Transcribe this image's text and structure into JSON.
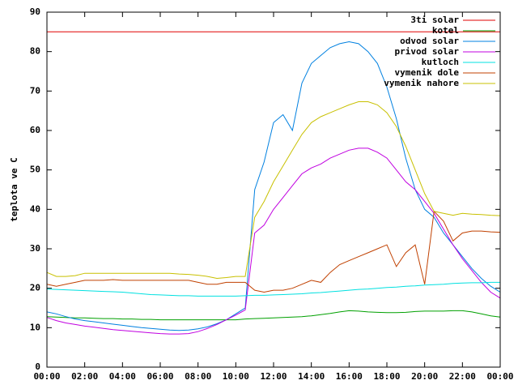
{
  "chart_data": {
    "type": "line",
    "y_label": "teplota ve C",
    "x": [
      0,
      0.5,
      1,
      1.5,
      2,
      2.5,
      3,
      3.5,
      4,
      4.5,
      5,
      5.5,
      6,
      6.5,
      7,
      7.5,
      8,
      8.5,
      9,
      9.5,
      10,
      10.5,
      11,
      11.5,
      12,
      12.5,
      13,
      13.5,
      14,
      14.5,
      15,
      15.5,
      16,
      16.5,
      17,
      17.5,
      18,
      18.5,
      19,
      19.5,
      20,
      20.5,
      21,
      21.5,
      22,
      22.5,
      23,
      23.5,
      24
    ],
    "xlim": [
      0,
      24
    ],
    "xticks": [
      {
        "value": 0,
        "label": "00:00"
      },
      {
        "value": 2,
        "label": "02:00"
      },
      {
        "value": 4,
        "label": "04:00"
      },
      {
        "value": 6,
        "label": "06:00"
      },
      {
        "value": 8,
        "label": "08:00"
      },
      {
        "value": 10,
        "label": "10:00"
      },
      {
        "value": 12,
        "label": "12:00"
      },
      {
        "value": 14,
        "label": "14:00"
      },
      {
        "value": 16,
        "label": "16:00"
      },
      {
        "value": 18,
        "label": "18:00"
      },
      {
        "value": 20,
        "label": "20:00"
      },
      {
        "value": 22,
        "label": "22:00"
      },
      {
        "value": 24,
        "label": "00:00"
      }
    ],
    "ylim": [
      0,
      90
    ],
    "yticks": [
      0,
      10,
      20,
      30,
      40,
      50,
      60,
      70,
      80,
      90
    ],
    "legend": "top-right",
    "series": [
      {
        "name": "3ti solar",
        "color": "#e00000",
        "values": [
          85,
          85,
          85,
          85,
          85,
          85,
          85,
          85,
          85,
          85,
          85,
          85,
          85,
          85,
          85,
          85,
          85,
          85,
          85,
          85,
          85,
          85,
          85,
          85,
          85,
          85,
          85,
          85,
          85,
          85,
          85,
          85,
          85,
          85,
          85,
          85,
          85,
          85,
          85,
          85,
          85,
          85,
          85,
          85,
          85,
          85,
          85,
          85,
          85
        ]
      },
      {
        "name": "kotel",
        "color": "#00a000",
        "values": [
          12.8,
          12.7,
          12.6,
          12.5,
          12.5,
          12.4,
          12.3,
          12.3,
          12.2,
          12.2,
          12.1,
          12.1,
          12,
          12,
          12,
          12,
          12,
          12,
          12,
          12,
          12,
          12.2,
          12.3,
          12.4,
          12.5,
          12.6,
          12.7,
          12.8,
          13,
          13.3,
          13.6,
          14,
          14.3,
          14.2,
          14,
          13.9,
          13.8,
          13.8,
          13.9,
          14.1,
          14.2,
          14.2,
          14.2,
          14.3,
          14.3,
          14,
          13.5,
          13,
          12.7
        ]
      },
      {
        "name": "odvod solar",
        "color": "#0080e0",
        "values": [
          14,
          13.5,
          12.8,
          12.2,
          11.8,
          11.5,
          11.2,
          10.9,
          10.6,
          10.3,
          10,
          9.8,
          9.6,
          9.4,
          9.3,
          9.4,
          9.7,
          10.2,
          11,
          12,
          13.5,
          15,
          45,
          52,
          62,
          64,
          60,
          72,
          77,
          79,
          81,
          82,
          82.5,
          82,
          80,
          77,
          71,
          63,
          53,
          45,
          40,
          38,
          34,
          31,
          28,
          25,
          22.5,
          20.5,
          19
        ]
      },
      {
        "name": "privod solar",
        "color": "#c000e0",
        "values": [
          12.6,
          11.8,
          11.2,
          10.8,
          10.4,
          10.1,
          9.8,
          9.5,
          9.3,
          9.1,
          8.9,
          8.7,
          8.5,
          8.4,
          8.4,
          8.5,
          9,
          9.8,
          10.8,
          12,
          13.2,
          14.5,
          34,
          36,
          40,
          43,
          46,
          49,
          50.5,
          51.5,
          53,
          54,
          55,
          55.5,
          55.5,
          54.5,
          53,
          50,
          47,
          45,
          42,
          39,
          35,
          31,
          27.5,
          24.5,
          21.5,
          19,
          17.5
        ]
      },
      {
        "name": "kutloch",
        "color": "#00e0e0",
        "values": [
          19.8,
          19.7,
          19.6,
          19.5,
          19.4,
          19.3,
          19.2,
          19.1,
          19,
          18.8,
          18.6,
          18.4,
          18.3,
          18.2,
          18.1,
          18.1,
          18,
          18,
          18,
          18,
          18,
          18.1,
          18.2,
          18.2,
          18.3,
          18.4,
          18.5,
          18.6,
          18.8,
          18.9,
          19.1,
          19.3,
          19.5,
          19.7,
          19.8,
          20,
          20.2,
          20.3,
          20.5,
          20.6,
          20.8,
          20.9,
          21,
          21.2,
          21.3,
          21.4,
          21.4,
          21.5,
          21.5
        ]
      },
      {
        "name": "vymenik dole",
        "color": "#c04000",
        "values": [
          21,
          20.5,
          21,
          21.5,
          22,
          22,
          22,
          22.2,
          22,
          22,
          22,
          22,
          22,
          22,
          22,
          22,
          21.5,
          21,
          21,
          21.5,
          21.5,
          21.5,
          19.5,
          19,
          19.5,
          19.5,
          20,
          21,
          22,
          21.5,
          24,
          26,
          27,
          28,
          29,
          30,
          31,
          25.5,
          29,
          31,
          21,
          39.5,
          37,
          32,
          34,
          34.5,
          34.5,
          34.3,
          34.2
        ]
      },
      {
        "name": "vymenik nahore",
        "color": "#c8c000",
        "values": [
          24,
          23,
          23,
          23.2,
          23.8,
          23.8,
          23.8,
          23.8,
          23.8,
          23.8,
          23.8,
          23.8,
          23.8,
          23.8,
          23.6,
          23.5,
          23.3,
          23,
          22.5,
          22.7,
          23,
          23,
          38,
          42,
          47,
          51,
          55,
          59,
          62,
          63.5,
          64.5,
          65.5,
          66.5,
          67.3,
          67.3,
          66.5,
          64.5,
          61,
          56,
          50,
          44,
          39.5,
          39,
          38.5,
          39,
          38.8,
          38.7,
          38.5,
          38.4
        ]
      }
    ]
  }
}
